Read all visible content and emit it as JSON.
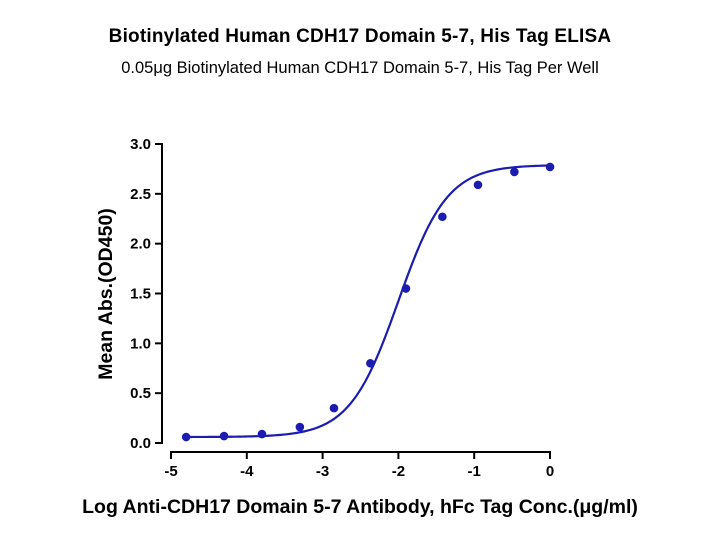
{
  "chart_data": {
    "type": "line",
    "title": "Biotinylated Human CDH17 Domain 5-7, His Tag ELISA",
    "subtitle": "0.05μg Biotinylated Human CDH17 Domain 5-7, His Tag Per Well",
    "xlabel": "Log Anti-CDH17 Domain 5-7 Antibody, hFc Tag Conc.(μg/ml)",
    "ylabel": "Mean Abs.(OD450)",
    "xlim": [
      -5,
      0
    ],
    "ylim": [
      0,
      3.0
    ],
    "x_ticks": [
      -5,
      -4,
      -3,
      -2,
      -1,
      0
    ],
    "x_tick_labels": [
      "-5",
      "-4",
      "-3",
      "-2",
      "-1",
      "0"
    ],
    "y_ticks": [
      0,
      0.5,
      1.0,
      1.5,
      2.0,
      2.5,
      3.0
    ],
    "y_tick_labels": [
      "0.0",
      "0.5",
      "1.0",
      "1.5",
      "2.0",
      "2.5",
      "3.0"
    ],
    "grid": false,
    "legend": "none",
    "series": [
      {
        "color": "#1c1cb0",
        "marker": "circle",
        "points": [
          {
            "x": -4.8,
            "y": 0.06
          },
          {
            "x": -4.3,
            "y": 0.07
          },
          {
            "x": -3.8,
            "y": 0.09
          },
          {
            "x": -3.3,
            "y": 0.16
          },
          {
            "x": -2.85,
            "y": 0.35
          },
          {
            "x": -2.37,
            "y": 0.8
          },
          {
            "x": -1.9,
            "y": 1.55
          },
          {
            "x": -1.42,
            "y": 2.27
          },
          {
            "x": -0.95,
            "y": 2.59
          },
          {
            "x": -0.47,
            "y": 2.72
          },
          {
            "x": 0.0,
            "y": 2.77
          }
        ],
        "fit": {
          "model": "4PL",
          "bottom": 0.06,
          "top": 2.79,
          "log_ec50": -2.0,
          "hill_slope": 1.35
        }
      }
    ]
  }
}
